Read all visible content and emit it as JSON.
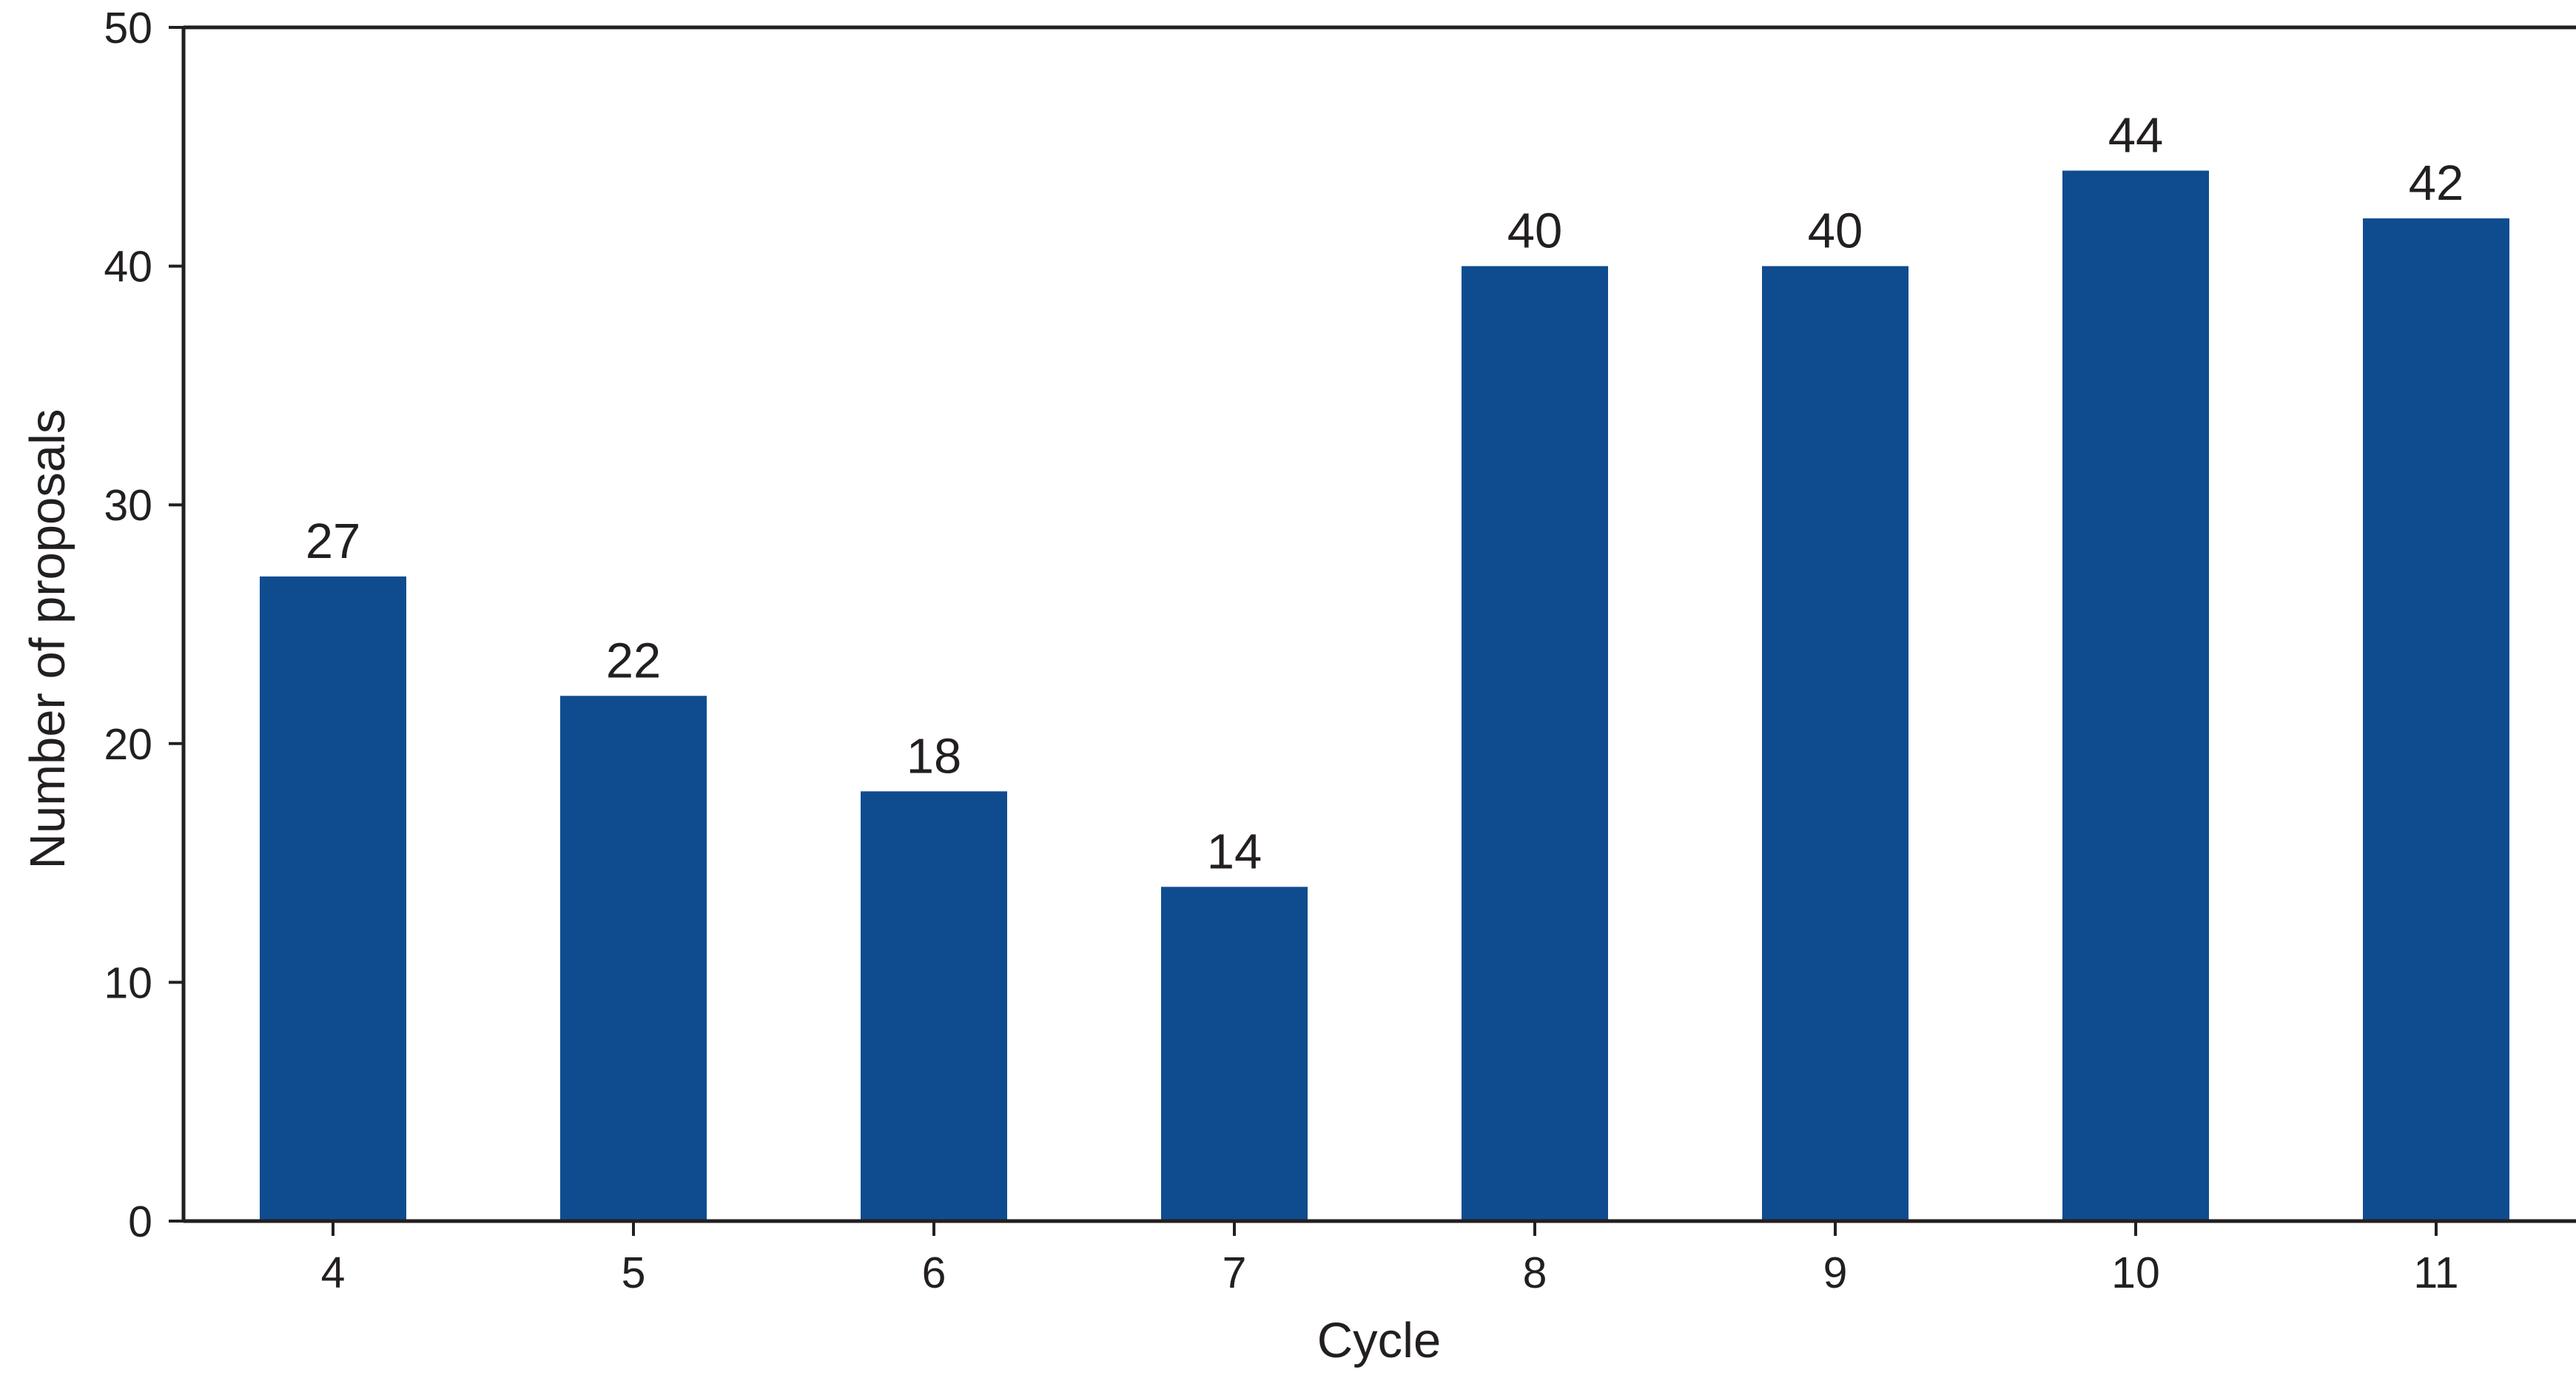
{
  "chart_data": {
    "type": "bar",
    "title": "",
    "xlabel": "Cycle",
    "ylabel": "Number of proposals",
    "categories": [
      "4",
      "5",
      "6",
      "7",
      "8",
      "9",
      "10",
      "11"
    ],
    "values": [
      27,
      22,
      18,
      14,
      40,
      40,
      44,
      42
    ],
    "data_labels": [
      "27",
      "22",
      "18",
      "14",
      "40",
      "40",
      "44",
      "42"
    ],
    "ylim": [
      0,
      50
    ],
    "yticks": [
      0,
      10,
      20,
      30,
      40,
      50
    ],
    "ytick_labels": [
      "0",
      "10",
      "20",
      "30",
      "40",
      "50"
    ],
    "grid": false,
    "legend": "none",
    "bar_color": "#0f4c8f",
    "axis_color": "#231f20"
  }
}
